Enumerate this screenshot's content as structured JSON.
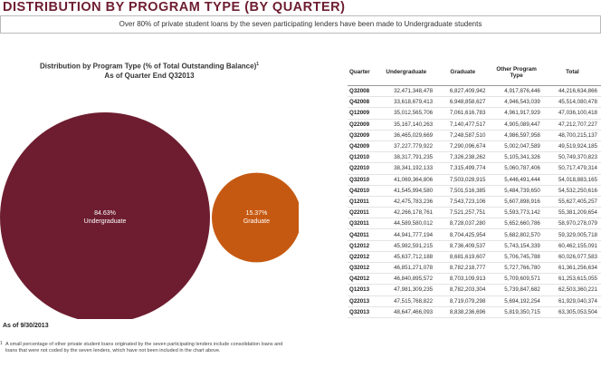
{
  "page": {
    "title": "DISTRIBUTION BY PROGRAM TYPE (BY QUARTER)",
    "banner": "Over 80% of private student loans by the seven participating lenders have been made to Undergraduate students",
    "as_of": "As of 9/30/2013",
    "footnote_mark": "1",
    "footnote": "A small percentage of other private student loans originated by the seven participating lenders include consolidation loans and loans that were not coded by the seven lenders, which have not been included in the chart above."
  },
  "chart_data": {
    "type": "bubble",
    "title": "Distribution by Program Type (% of Total Outstanding Balance)",
    "title_sup": "1",
    "subtitle": "As of Quarter End Q32013",
    "series": [
      {
        "name": "Undergraduate",
        "value": 84.63,
        "label": "84.63%",
        "color": "#6e1d30"
      },
      {
        "name": "Graduate",
        "value": 15.37,
        "label": "15.37%",
        "color": "#c65911"
      }
    ]
  },
  "table": {
    "headers": [
      "Quarter",
      "Undergraduate",
      "Graduate",
      "Other Program Type",
      "Total"
    ],
    "rows": [
      [
        "Q32008",
        "32,471,348,478",
        "6,827,409,942",
        "4,917,876,446",
        "44,216,634,866"
      ],
      [
        "Q42008",
        "33,618,679,413",
        "6,948,858,627",
        "4,946,543,039",
        "45,514,080,478"
      ],
      [
        "Q12009",
        "35,012,565,706",
        "7,061,616,783",
        "4,961,917,929",
        "47,036,100,418"
      ],
      [
        "Q22009",
        "35,167,140,263",
        "7,140,477,517",
        "4,905,089,447",
        "47,212,707,227"
      ],
      [
        "Q32009",
        "36,465,029,669",
        "7,248,587,510",
        "4,986,597,958",
        "48,700,215,137"
      ],
      [
        "Q42009",
        "37,227,779,922",
        "7,290,096,674",
        "5,002,047,589",
        "49,519,924,185"
      ],
      [
        "Q12010",
        "38,317,791,235",
        "7,326,238,262",
        "5,105,341,326",
        "50,749,370,823"
      ],
      [
        "Q22010",
        "38,341,192,133",
        "7,315,499,774",
        "5,060,787,406",
        "50,717,479,314"
      ],
      [
        "Q32010",
        "41,069,364,806",
        "7,503,028,915",
        "5,446,491,444",
        "54,018,883,165"
      ],
      [
        "Q42010",
        "41,545,994,580",
        "7,501,516,385",
        "5,484,739,650",
        "54,532,250,616"
      ],
      [
        "Q12011",
        "42,475,783,236",
        "7,543,723,106",
        "5,607,898,916",
        "55,627,405,257"
      ],
      [
        "Q22011",
        "42,266,178,761",
        "7,521,257,751",
        "5,593,773,142",
        "55,381,209,654"
      ],
      [
        "Q32011",
        "44,589,580,012",
        "8,728,037,280",
        "5,652,660,786",
        "58,970,278,079"
      ],
      [
        "Q42011",
        "44,941,777,194",
        "8,704,425,954",
        "5,682,802,570",
        "59,329,005,718"
      ],
      [
        "Q12012",
        "45,982,591,215",
        "8,736,409,537",
        "5,743,154,339",
        "60,462,155,091"
      ],
      [
        "Q22012",
        "45,637,712,188",
        "8,681,619,607",
        "5,706,745,788",
        "60,026,077,583"
      ],
      [
        "Q32012",
        "46,851,271,078",
        "8,782,218,777",
        "5,727,766,780",
        "61,361,256,634"
      ],
      [
        "Q42012",
        "46,840,895,572",
        "8,703,109,913",
        "5,709,609,571",
        "61,253,615,055"
      ],
      [
        "Q12013",
        "47,981,309,235",
        "8,782,203,304",
        "5,739,847,682",
        "62,503,360,221"
      ],
      [
        "Q22013",
        "47,515,768,822",
        "8,719,079,298",
        "5,694,192,254",
        "61,929,040,374"
      ],
      [
        "Q32013",
        "48,647,466,093",
        "8,838,236,696",
        "5,819,350,715",
        "63,305,053,504"
      ]
    ]
  }
}
